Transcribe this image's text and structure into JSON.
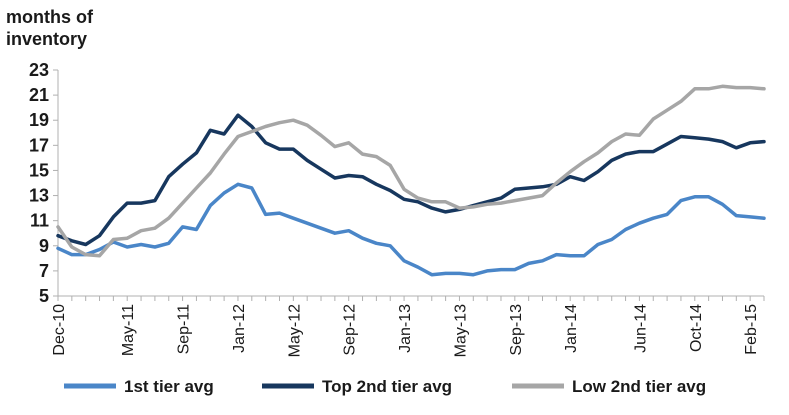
{
  "chart_data": {
    "type": "line",
    "ylabel": "months of inventory",
    "xlabel": "",
    "ylim": [
      5,
      23
    ],
    "yticks": [
      5,
      7,
      9,
      11,
      13,
      15,
      17,
      19,
      21,
      23
    ],
    "grid": false,
    "legend_position": "bottom",
    "x_tick_labels": [
      "Dec-10",
      "May-11",
      "Sep-11",
      "Jan-12",
      "May-12",
      "Sep-12",
      "Jan-13",
      "May-13",
      "Sep-13",
      "Jan-14",
      "Jun-14",
      "Oct-14",
      "Feb-15"
    ],
    "x_tick_index": [
      0,
      5,
      9,
      13,
      17,
      21,
      25,
      29,
      33,
      37,
      42,
      46,
      50
    ],
    "x": [
      "Dec-10",
      "Jan-11",
      "Feb-11",
      "Mar-11",
      "Apr-11",
      "May-11",
      "Jun-11",
      "Jul-11",
      "Aug-11",
      "Sep-11",
      "Oct-11",
      "Nov-11",
      "Dec-11",
      "Jan-12",
      "Feb-12",
      "Mar-12",
      "Apr-12",
      "May-12",
      "Jun-12",
      "Jul-12",
      "Aug-12",
      "Sep-12",
      "Oct-12",
      "Nov-12",
      "Dec-12",
      "Jan-13",
      "Feb-13",
      "Mar-13",
      "Apr-13",
      "May-13",
      "Jun-13",
      "Jul-13",
      "Aug-13",
      "Sep-13",
      "Oct-13",
      "Nov-13",
      "Dec-13",
      "Jan-14",
      "Feb-14",
      "Mar-14",
      "Apr-14",
      "May-14",
      "Jun-14",
      "Jul-14",
      "Aug-14",
      "Sep-14",
      "Oct-14",
      "Nov-14",
      "Dec-14",
      "Jan-15",
      "Feb-15",
      "Mar-15"
    ],
    "series": [
      {
        "name": "1st tier avg",
        "color": "#4a86c8",
        "values": [
          8.8,
          8.3,
          8.3,
          8.7,
          9.3,
          8.9,
          9.1,
          8.9,
          9.2,
          10.5,
          10.3,
          12.2,
          13.2,
          13.9,
          13.6,
          11.5,
          11.6,
          11.2,
          10.8,
          10.4,
          10.0,
          10.2,
          9.6,
          9.2,
          9.0,
          7.8,
          7.3,
          6.7,
          6.8,
          6.8,
          6.7,
          7.0,
          7.1,
          7.1,
          7.6,
          7.8,
          8.3,
          8.2,
          8.2,
          9.1,
          9.5,
          10.3,
          10.8,
          11.2,
          11.5,
          12.6,
          12.9,
          12.9,
          12.3,
          11.4,
          11.3,
          11.2
        ]
      },
      {
        "name": "Top 2nd tier avg",
        "color": "#17375e",
        "values": [
          9.8,
          9.4,
          9.1,
          9.8,
          11.3,
          12.4,
          12.4,
          12.6,
          14.5,
          15.5,
          16.4,
          18.2,
          17.9,
          19.4,
          18.5,
          17.2,
          16.7,
          16.7,
          15.8,
          15.1,
          14.4,
          14.6,
          14.5,
          13.9,
          13.4,
          12.7,
          12.5,
          12.0,
          11.7,
          11.9,
          12.2,
          12.5,
          12.8,
          13.5,
          13.6,
          13.7,
          13.9,
          14.5,
          14.2,
          14.9,
          15.8,
          16.3,
          16.5,
          16.5,
          17.1,
          17.7,
          17.6,
          17.5,
          17.3,
          16.8,
          17.2,
          17.3
        ]
      },
      {
        "name": "Low 2nd tier avg",
        "color": "#a6a6a6",
        "values": [
          10.5,
          8.9,
          8.3,
          8.2,
          9.5,
          9.6,
          10.2,
          10.4,
          11.2,
          12.4,
          13.6,
          14.8,
          16.3,
          17.7,
          18.1,
          18.5,
          18.8,
          19.0,
          18.6,
          17.8,
          16.9,
          17.2,
          16.3,
          16.1,
          15.4,
          13.5,
          12.8,
          12.5,
          12.5,
          12.0,
          12.1,
          12.3,
          12.4,
          12.6,
          12.8,
          13.0,
          14.0,
          14.9,
          15.7,
          16.4,
          17.3,
          17.9,
          17.8,
          19.1,
          19.8,
          20.5,
          21.5,
          21.5,
          21.7,
          21.6,
          21.6,
          21.5
        ]
      }
    ]
  }
}
